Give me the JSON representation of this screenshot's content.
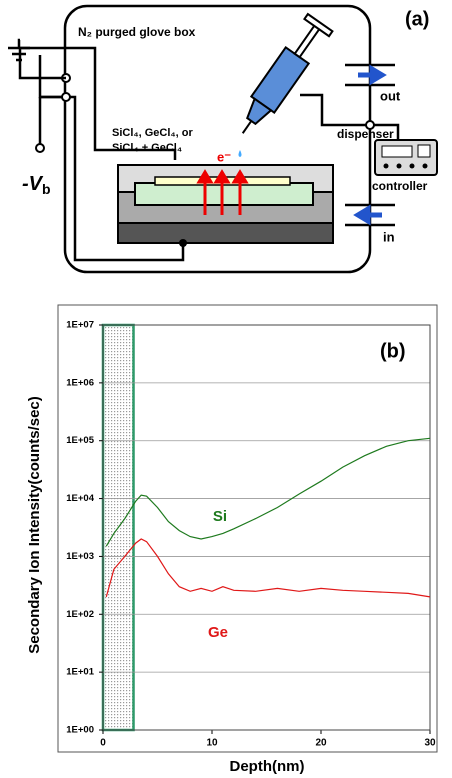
{
  "diagram": {
    "panel_label": "(a)",
    "box_label": "N₂ purged glove box",
    "precursor_line1": "SiCl₄, GeCl₄, or",
    "precursor_line2": "SiCl₄ + GeCl₄",
    "electron": "e⁻",
    "bias_symbol": "-V",
    "bias_subscript": "b",
    "dispenser": "dispenser",
    "out": "out",
    "in": "in",
    "controller": "controller"
  },
  "chart_data": {
    "type": "line",
    "panel_label": "(b)",
    "y_label": "Secondary Ion Intensity(counts/sec)",
    "x_label": "Depth(nm)",
    "x": [
      0.3,
      1,
      2,
      3,
      3.5,
      4,
      5,
      6,
      7,
      8,
      9,
      10,
      11,
      12,
      14,
      16,
      18,
      20,
      22,
      24,
      26,
      28,
      30
    ],
    "series": [
      {
        "name": "Si",
        "color": "#1e7a1e",
        "values": [
          1500,
          2500,
          4500,
          9000,
          11500,
          11000,
          7000,
          4000,
          2800,
          2200,
          2000,
          2200,
          2500,
          3000,
          4500,
          7000,
          12000,
          20000,
          35000,
          55000,
          80000,
          100000,
          110000
        ]
      },
      {
        "name": "Ge",
        "color": "#e01818",
        "values": [
          200,
          600,
          1000,
          1700,
          2000,
          1800,
          1000,
          500,
          300,
          250,
          280,
          250,
          300,
          260,
          250,
          280,
          250,
          280,
          260,
          250,
          240,
          230,
          200
        ]
      }
    ],
    "xlim": [
      0,
      30
    ],
    "xticks": [
      0,
      10,
      20,
      30
    ],
    "ylim": [
      1,
      10000000
    ],
    "log_y": true,
    "grid": true,
    "yticks": [
      {
        "value": 1,
        "label": "1E+00"
      },
      {
        "value": 10,
        "label": "1E+01"
      },
      {
        "value": 100,
        "label": "1E+02"
      },
      {
        "value": 1000,
        "label": "1E+03"
      },
      {
        "value": 10000,
        "label": "1E+04"
      },
      {
        "value": 100000,
        "label": "1E+05"
      },
      {
        "value": 1000000,
        "label": "1E+06"
      },
      {
        "value": 10000000,
        "label": "1E+07"
      }
    ],
    "highlight_x": [
      0,
      2.8
    ],
    "highlight_color": "#2e9a6a"
  }
}
